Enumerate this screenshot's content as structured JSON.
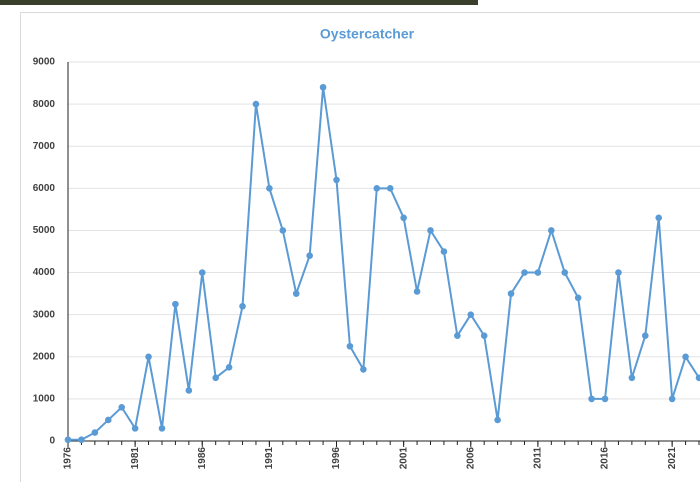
{
  "chart_data": {
    "type": "line",
    "title": "Oystercatcher",
    "x": [
      1976,
      1977,
      1978,
      1979,
      1980,
      1981,
      1982,
      1983,
      1984,
      1985,
      1986,
      1987,
      1988,
      1989,
      1990,
      1991,
      1992,
      1993,
      1994,
      1995,
      1996,
      1997,
      1998,
      1999,
      2000,
      2001,
      2002,
      2003,
      2004,
      2005,
      2006,
      2007,
      2008,
      2009,
      2010,
      2011,
      2012,
      2013,
      2014,
      2015,
      2016,
      2017,
      2018,
      2019,
      2020,
      2021,
      2022,
      2023
    ],
    "series": [
      {
        "name": "Oystercatcher",
        "color": "#5b9bd5",
        "values": [
          30,
          30,
          200,
          500,
          800,
          300,
          2000,
          300,
          3250,
          1200,
          4000,
          1500,
          1750,
          3200,
          8000,
          6000,
          5000,
          3500,
          4400,
          8400,
          6200,
          2250,
          1700,
          6000,
          6000,
          5300,
          3550,
          5000,
          4500,
          2500,
          3000,
          2500,
          500,
          3500,
          4000,
          4000,
          5000,
          4000,
          3400,
          1000,
          1000,
          4000,
          1500,
          2500,
          5300,
          1000,
          2000,
          1500
        ]
      }
    ],
    "xlim": [
      1976,
      2023
    ],
    "xticks": [
      1976,
      1981,
      1986,
      1991,
      1996,
      2001,
      2006,
      2011,
      2016,
      2021
    ],
    "ylim": [
      0,
      9000
    ],
    "yticks": [
      0,
      1000,
      2000,
      3000,
      4000,
      5000,
      6000,
      7000,
      8000,
      9000
    ],
    "grid": true
  }
}
